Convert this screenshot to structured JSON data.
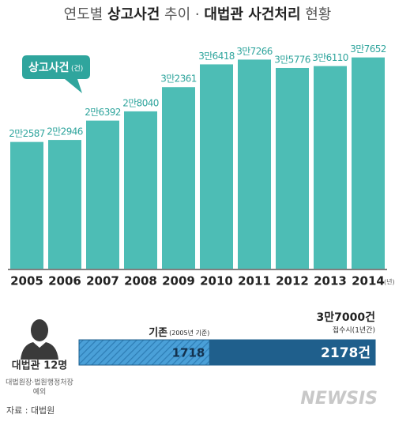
{
  "chart_data": [
    {
      "type": "bar",
      "title_parts": [
        "연도별 ",
        "상고사건",
        " 추이 · ",
        "대법관 사건처리",
        " 현황"
      ],
      "callout": {
        "label": "상고사건",
        "unit": "(건)"
      },
      "x_unit": "(년)",
      "categories": [
        "2005",
        "2006",
        "2007",
        "2008",
        "2009",
        "2010",
        "2011",
        "2012",
        "2013",
        "2014"
      ],
      "values": [
        22587,
        22946,
        26392,
        28040,
        32361,
        36418,
        37266,
        35776,
        36110,
        37652
      ],
      "value_labels": [
        "2만2587",
        "2만2946",
        "2만6392",
        "2만8040",
        "3만2361",
        "3만6418",
        "3만7266",
        "3만5776",
        "3만6110",
        "3만7652"
      ],
      "color": "#4dbdb5",
      "label_color": "#2fa59d",
      "ylim": [
        0,
        40000
      ]
    },
    {
      "type": "stacked_hbar",
      "label": "대법관 12명",
      "sublabel_lines": [
        "대법원장·법원행정처장",
        "예외"
      ],
      "series": [
        {
          "name": "기존",
          "note": "(2005년 기준)",
          "color": "#4aa0d8",
          "values": [
            1718
          ]
        },
        {
          "name": "3만7000건",
          "note": "접수시(1년간)",
          "color": "#1f5f8c",
          "values": [
            2178
          ],
          "value_labels": [
            "2178건"
          ]
        }
      ]
    }
  ],
  "footer": {
    "source": "자료 : 대법원",
    "watermark": "NEWSIS"
  }
}
